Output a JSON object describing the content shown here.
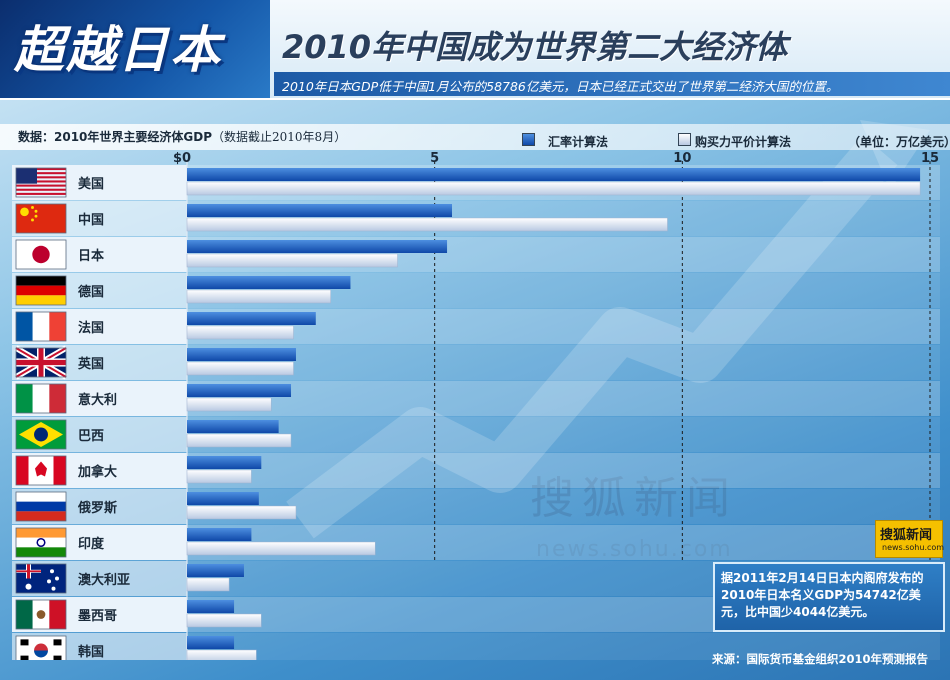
{
  "header": {
    "big_title": "超越日本",
    "title": "2010年中国成为世界第二大经济体",
    "subtitle": "2010年日本GDP低于中国1月公布的58786亿美元，日本已经正式交出了世界第二经济大国的位置。"
  },
  "chart_header": {
    "data_label": "数据：2010年世界主要经济体GDP",
    "data_note": "（数据截止2010年8月）",
    "legend_exchange": "汇率计算法",
    "legend_ppp": "购买力平价计算法",
    "unit": "（单位：万亿美元）"
  },
  "colors": {
    "exchange_bar": "#1e63c3",
    "ppp_bar": "#cfdcee",
    "grid_line": "#1a1a1a",
    "row_light": "#eaf3fb"
  },
  "chart_data": {
    "type": "bar",
    "orientation": "horizontal",
    "categories": [
      "美国",
      "中国",
      "日本",
      "德国",
      "法国",
      "英国",
      "意大利",
      "巴西",
      "加拿大",
      "俄罗斯",
      "印度",
      "澳大利亚",
      "墨西哥",
      "韩国"
    ],
    "flags": [
      "us-flag-icon",
      "cn-flag-icon",
      "jp-flag-icon",
      "de-flag-icon",
      "fr-flag-icon",
      "gb-flag-icon",
      "it-flag-icon",
      "br-flag-icon",
      "ca-flag-icon",
      "ru-flag-icon",
      "in-flag-icon",
      "au-flag-icon",
      "mx-flag-icon",
      "kr-flag-icon"
    ],
    "series": [
      {
        "name": "汇率计算法",
        "values": [
          14.8,
          5.35,
          5.25,
          3.3,
          2.6,
          2.2,
          2.1,
          1.85,
          1.5,
          1.45,
          1.3,
          1.15,
          0.95,
          0.95
        ]
      },
      {
        "name": "购买力平价计算法",
        "values": [
          14.8,
          9.7,
          4.25,
          2.9,
          2.15,
          2.15,
          1.7,
          2.1,
          1.3,
          2.2,
          3.8,
          0.85,
          1.5,
          1.4
        ]
      }
    ],
    "xlim": [
      0,
      15
    ],
    "x_ticks": [
      {
        "value": 0,
        "label": "$0"
      },
      {
        "value": 5,
        "label": "5"
      },
      {
        "value": 10,
        "label": "10"
      },
      {
        "value": 15,
        "label": "15"
      }
    ],
    "grid": true
  },
  "badge": {
    "cn": "搜狐新闻",
    "en": "news.sohu.com"
  },
  "note": {
    "text": "据2011年2月14日日本内阁府发布的2010年日本名义GDP为54742亿美元，比中国少4044亿美元。"
  },
  "source": "来源：国际货币基金组织2010年预测报告",
  "watermark": {
    "cn": "搜狐新闻",
    "en": "news.sohu.com"
  }
}
